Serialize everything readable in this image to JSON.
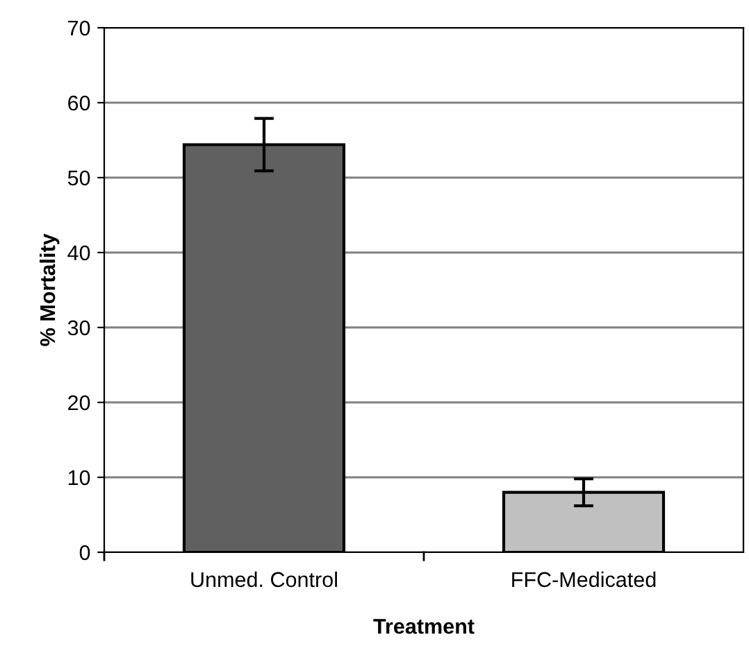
{
  "chart_data": {
    "type": "bar",
    "xlabel": "Treatment",
    "ylabel": "% Mortality",
    "categories": [
      "Unmed. Control",
      "FFC-Medicated"
    ],
    "values": [
      54.4,
      8.0
    ],
    "errors": [
      3.5,
      1.8
    ],
    "colors": [
      "#606060",
      "#c0c0c0"
    ],
    "ylim": [
      0,
      70
    ],
    "yticks": [
      0,
      10,
      20,
      30,
      40,
      50,
      60,
      70
    ],
    "grid": "y",
    "legend": false
  }
}
